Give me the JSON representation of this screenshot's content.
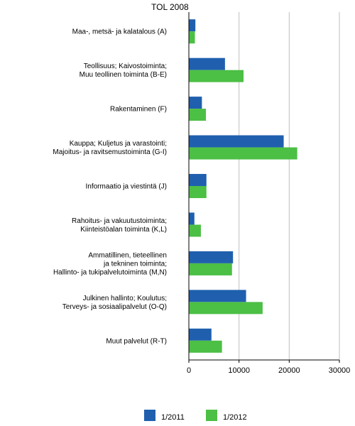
{
  "chart_data": {
    "type": "bar",
    "orientation": "horizontal",
    "title": "TOL 2008",
    "categories": [
      [
        "Maa-, metsä- ja kalatalous (A)"
      ],
      [
        "Teollisuus; Kaivostoiminta;",
        "Muu teollinen toiminta (B-E)"
      ],
      [
        "Rakentaminen (F)"
      ],
      [
        "Kauppa; Kuljetus ja varastointi;",
        "Majoitus- ja ravitsemustoiminta (G-I)"
      ],
      [
        "Informaatio ja viestintä (J)"
      ],
      [
        "Rahoitus- ja vakuutustoiminta;",
        "Kiinteistöalan toiminta (K,L)"
      ],
      [
        "Ammatillinen, tieteellinen",
        "ja tekninen toiminta;",
        "Hallinto- ja tukipalvelutoiminta (M,N)"
      ],
      [
        "Julkinen hallinto; Koulutus;",
        "Terveys- ja sosiaalipalvelut (O-Q)"
      ],
      [
        "Muut palvelut (R-T)"
      ]
    ],
    "series": [
      {
        "name": "1/2011",
        "color": "#1f5fae",
        "values": [
          1300,
          7200,
          2600,
          18900,
          3500,
          1100,
          8800,
          11400,
          4500
        ]
      },
      {
        "name": "1/2012",
        "color": "#4cbf45",
        "values": [
          1200,
          10900,
          3400,
          21600,
          3500,
          2400,
          8600,
          14700,
          6600
        ]
      }
    ],
    "xlim": [
      0,
      30000
    ],
    "xticks": [
      0,
      10000,
      20000,
      30000
    ],
    "tick_labels": [
      "0",
      "10000",
      "20000",
      "30000"
    ],
    "grid": true,
    "legend_position": "bottom"
  }
}
